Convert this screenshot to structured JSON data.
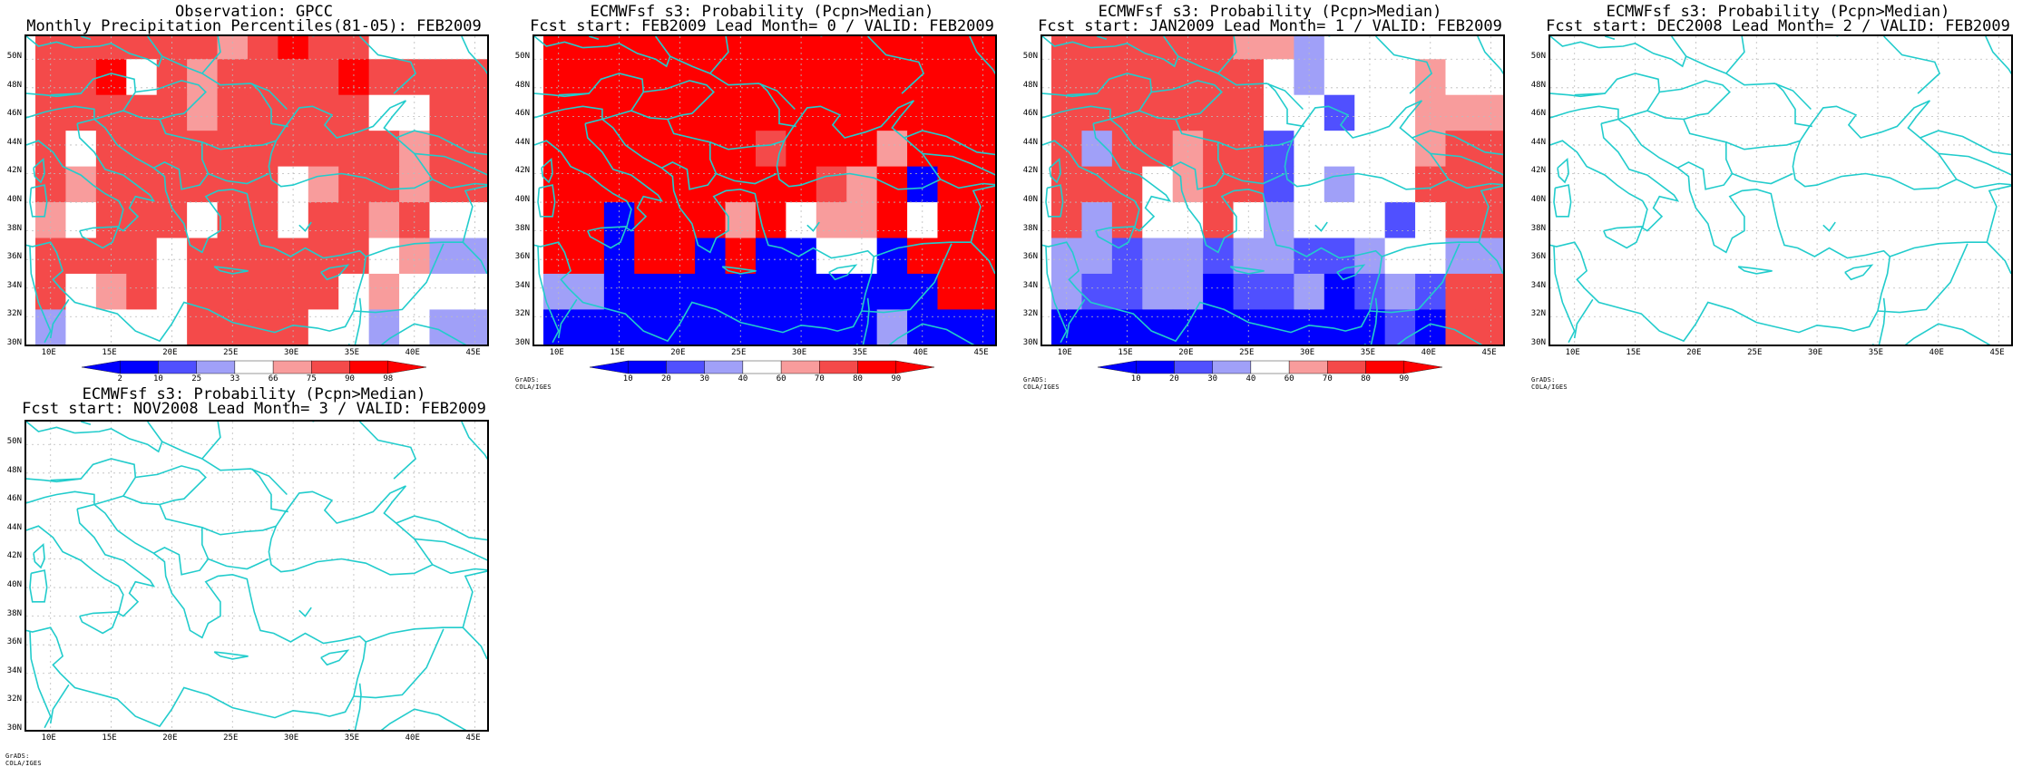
{
  "colors": {
    "strong_red": "#ff0000",
    "mid_red": "#f44a4a",
    "light_red": "#f89c9c",
    "white": "#ffffff",
    "light_blue": "#a0a0f8",
    "mid_blue": "#5050ff",
    "strong_blue": "#0000ff",
    "coast": "#22cccc"
  },
  "axis": {
    "lat_labels": [
      "50N",
      "48N",
      "46N",
      "44N",
      "42N",
      "40N",
      "38N",
      "36N",
      "34N",
      "32N",
      "30N"
    ],
    "lon_labels": [
      "10E",
      "15E",
      "20E",
      "25E",
      "30E",
      "35E",
      "40E",
      "45E"
    ]
  },
  "panels": [
    {
      "title1": "Observation: GPCC",
      "title2": "Monthly Precipitation Percentiles(81-05): FEB2009",
      "colorbar_labels": [
        "2",
        "10",
        "25",
        "33",
        "66",
        "75",
        "90",
        "98"
      ],
      "credit": ""
    },
    {
      "title1": "ECMWFsf s3: Probability (Pcpn>Median)",
      "title2": "Fcst start: FEB2009   Lead Month= 0 / VALID: FEB2009",
      "colorbar_labels": [
        "10",
        "20",
        "30",
        "40",
        "60",
        "70",
        "80",
        "90"
      ],
      "credit": "GrADS: COLA/IGES"
    },
    {
      "title1": "ECMWFsf s3: Probability (Pcpn>Median)",
      "title2": "Fcst start: JAN2009   Lead Month= 1 / VALID: FEB2009",
      "colorbar_labels": [
        "10",
        "20",
        "30",
        "40",
        "60",
        "70",
        "80",
        "90"
      ],
      "credit": "GrADS: COLA/IGES"
    },
    {
      "title1": "ECMWFsf s3: Probability (Pcpn>Median)",
      "title2": "Fcst start: DEC2008   Lead Month= 2 / VALID: FEB2009",
      "colorbar_labels": [],
      "credit": "GrADS: COLA/IGES"
    },
    {
      "title1": "ECMWFsf s3: Probability (Pcpn>Median)",
      "title2": "Fcst start: NOV2008   Lead Month= 3 / VALID: FEB2009",
      "colorbar_labels": [],
      "credit": "GrADS: COLA/IGES"
    }
  ]
}
